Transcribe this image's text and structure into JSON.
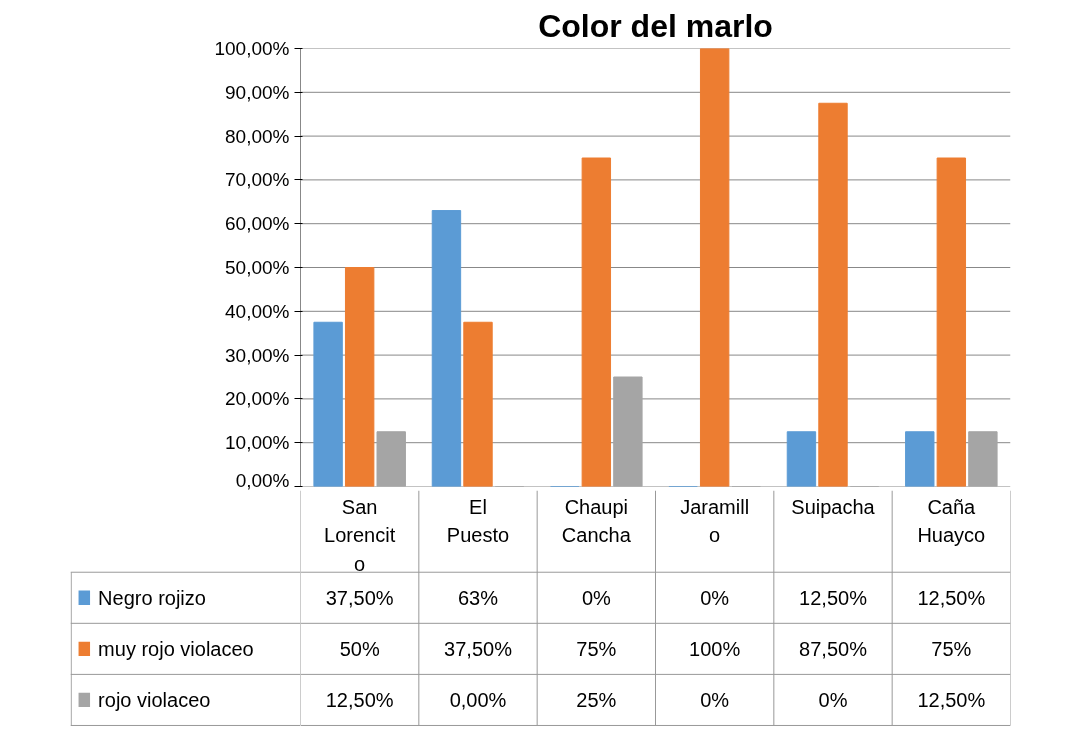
{
  "chart_data": {
    "type": "bar",
    "title": "Color del marlo",
    "categories": [
      "San Lorencito",
      "El Puesto",
      "Chaupi Cancha",
      "Jaramillo",
      "Suipacha",
      "Caña Huayco"
    ],
    "series": [
      {
        "name": "Negro rojizo",
        "color": "#5b9bd5",
        "values": [
          37.5,
          63,
          0,
          0,
          12.5,
          12.5
        ],
        "value_labels": [
          "37,50%",
          "63%",
          "0%",
          "0%",
          "12,50%",
          "12,50%"
        ]
      },
      {
        "name": "muy rojo violaceo",
        "color": "#ed7d31",
        "values": [
          50,
          37.5,
          75,
          100,
          87.5,
          75
        ],
        "value_labels": [
          "50%",
          "37,50%",
          "75%",
          "100%",
          "87,50%",
          "75%"
        ]
      },
      {
        "name": "rojo violaceo",
        "color": "#a5a5a5",
        "values": [
          12.5,
          0,
          25,
          0,
          0,
          12.5
        ],
        "value_labels": [
          "12,50%",
          "0,00%",
          "25%",
          "0%",
          "0%",
          "12,50%"
        ]
      }
    ],
    "ylim": [
      0,
      100
    ],
    "yticks": [
      {
        "value": 0,
        "label": "0,00%"
      },
      {
        "value": 10,
        "label": "10,00%"
      },
      {
        "value": 20,
        "label": "20,00%"
      },
      {
        "value": 30,
        "label": "30,00%"
      },
      {
        "value": 40,
        "label": "40,00%"
      },
      {
        "value": 50,
        "label": "50,00%"
      },
      {
        "value": 60,
        "label": "60,00%"
      },
      {
        "value": 70,
        "label": "70,00%"
      },
      {
        "value": 80,
        "label": "80,00%"
      },
      {
        "value": 90,
        "label": "90,00%"
      },
      {
        "value": 100,
        "label": "100,00%"
      }
    ],
    "grid": "y",
    "legend": "bottom"
  }
}
